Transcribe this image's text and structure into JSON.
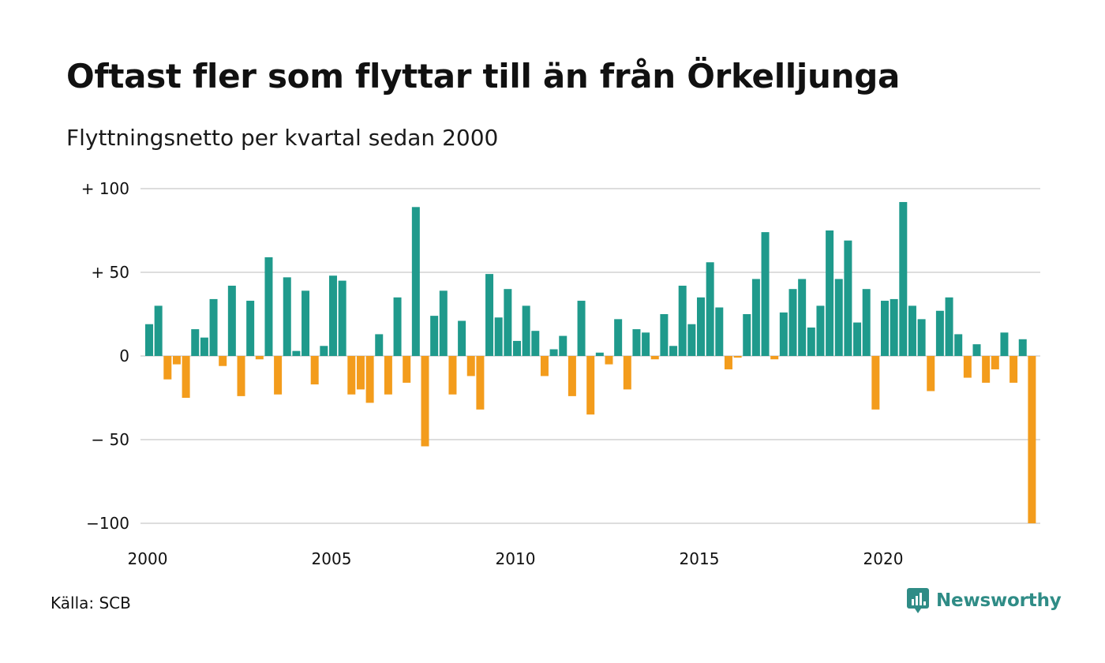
{
  "title": "Oftast fler som flyttar till än från Örkelljunga",
  "subtitle": "Flyttningsnetto per kvartal sedan 2000",
  "source": "Källa: SCB",
  "brand": {
    "name": "Newsworthy",
    "icon": "newsworthy-logo-icon",
    "color": "#2f8c86"
  },
  "colors": {
    "positive": "#1f9a8c",
    "negative": "#f39c1c",
    "grid": "#dddddd"
  },
  "chart_data": {
    "type": "bar",
    "title": "Oftast fler som flyttar till än från Örkelljunga",
    "subtitle": "Flyttningsnetto per kvartal sedan 2000",
    "xlabel": "",
    "ylabel": "",
    "ylim": [
      -100,
      100
    ],
    "grid": true,
    "y_ticks": [
      {
        "value": 100,
        "label": "+ 100"
      },
      {
        "value": 50,
        "label": "+  50"
      },
      {
        "value": 0,
        "label": "0"
      },
      {
        "value": -50,
        "label": "− 50"
      },
      {
        "value": -100,
        "label": "−100"
      }
    ],
    "x_ticks": [
      {
        "value": 2000,
        "label": "2000"
      },
      {
        "value": 2005,
        "label": "2005"
      },
      {
        "value": 2010,
        "label": "2010"
      },
      {
        "value": 2015,
        "label": "2015"
      },
      {
        "value": 2020,
        "label": "2020"
      }
    ],
    "start_year": 2000,
    "start_quarter": 1,
    "values": [
      19,
      30,
      -14,
      -5,
      -25,
      16,
      11,
      34,
      -6,
      42,
      -24,
      33,
      -2,
      59,
      -23,
      47,
      3,
      39,
      -17,
      6,
      48,
      45,
      -23,
      -20,
      -28,
      13,
      -23,
      35,
      -16,
      89,
      -54,
      24,
      39,
      -23,
      21,
      -12,
      -32,
      49,
      23,
      40,
      9,
      30,
      15,
      -12,
      4,
      12,
      -24,
      33,
      -35,
      2,
      -5,
      22,
      -20,
      16,
      14,
      -2,
      25,
      6,
      42,
      19,
      35,
      56,
      29,
      -8,
      -1,
      25,
      46,
      74,
      -2,
      26,
      40,
      46,
      17,
      30,
      75,
      46,
      69,
      20,
      40,
      -32,
      33,
      34,
      92,
      30,
      22,
      -21,
      27,
      35,
      13,
      -13,
      7,
      -16,
      -8,
      14,
      -16,
      10,
      -100
    ]
  }
}
